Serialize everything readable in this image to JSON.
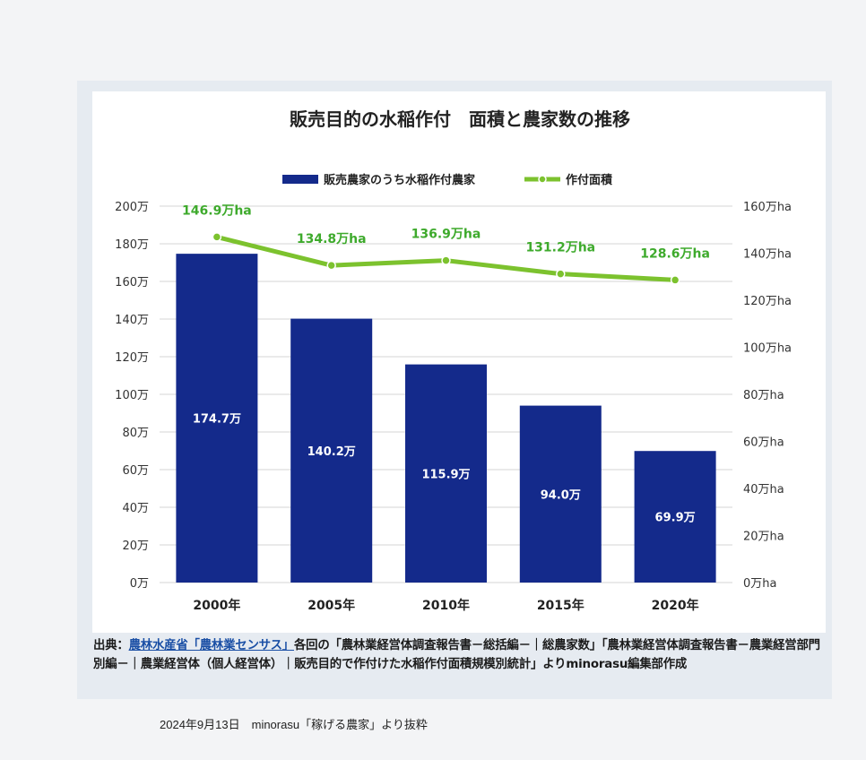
{
  "chart_data": {
    "type": "bar",
    "title": "販売目的の水稲作付　面積と農家数の推移",
    "categories": [
      "2000年",
      "2005年",
      "2010年",
      "2015年",
      "2020年"
    ],
    "series": [
      {
        "name": "販売農家のうち水稲作付農家",
        "type": "bar",
        "axis": "left",
        "values": [
          174.7,
          140.2,
          115.9,
          94.0,
          69.9
        ],
        "labels": [
          "174.7万",
          "140.2万",
          "115.9万",
          "94.0万",
          "69.9万"
        ],
        "color": "#142a8b"
      },
      {
        "name": "作付面積",
        "type": "line",
        "axis": "right",
        "values": [
          146.9,
          134.8,
          136.9,
          131.2,
          128.6
        ],
        "labels": [
          "146.9万ha",
          "134.8万ha",
          "136.9万ha",
          "131.2万ha",
          "128.6万ha"
        ],
        "color": "#7cc22e"
      }
    ],
    "y_left": {
      "ylim": [
        0,
        200
      ],
      "ticks": [
        "0万",
        "20万",
        "40万",
        "60万",
        "80万",
        "100万",
        "120万",
        "140万",
        "160万",
        "180万",
        "200万"
      ]
    },
    "y_right": {
      "ylim": [
        0,
        160
      ],
      "ticks": [
        "0万ha",
        "20万ha",
        "40万ha",
        "60万ha",
        "80万ha",
        "100万ha",
        "120万ha",
        "140万ha",
        "160万ha"
      ]
    },
    "grid": true,
    "legend": "top-center"
  },
  "source": {
    "prefix": "出典：",
    "link": "農林水産省「農林業センサス」",
    "body": "各回の「農林業経営体調査報告書－総括編－｜総農家数」「農林業経営体調査報告書－農業経営部門別編－｜農業経営体（個人経営体）｜販売目的で作付けた水稲作付面積規模別統計」よりminorasu編集部作成"
  },
  "caption": "2024年9月13日　minorasu「稼げる農家」より抜粋",
  "colors": {
    "bar": "#142a8b",
    "line": "#7cc22e",
    "line_label": "#3eaa2c",
    "grid": "#d6d6d6"
  }
}
